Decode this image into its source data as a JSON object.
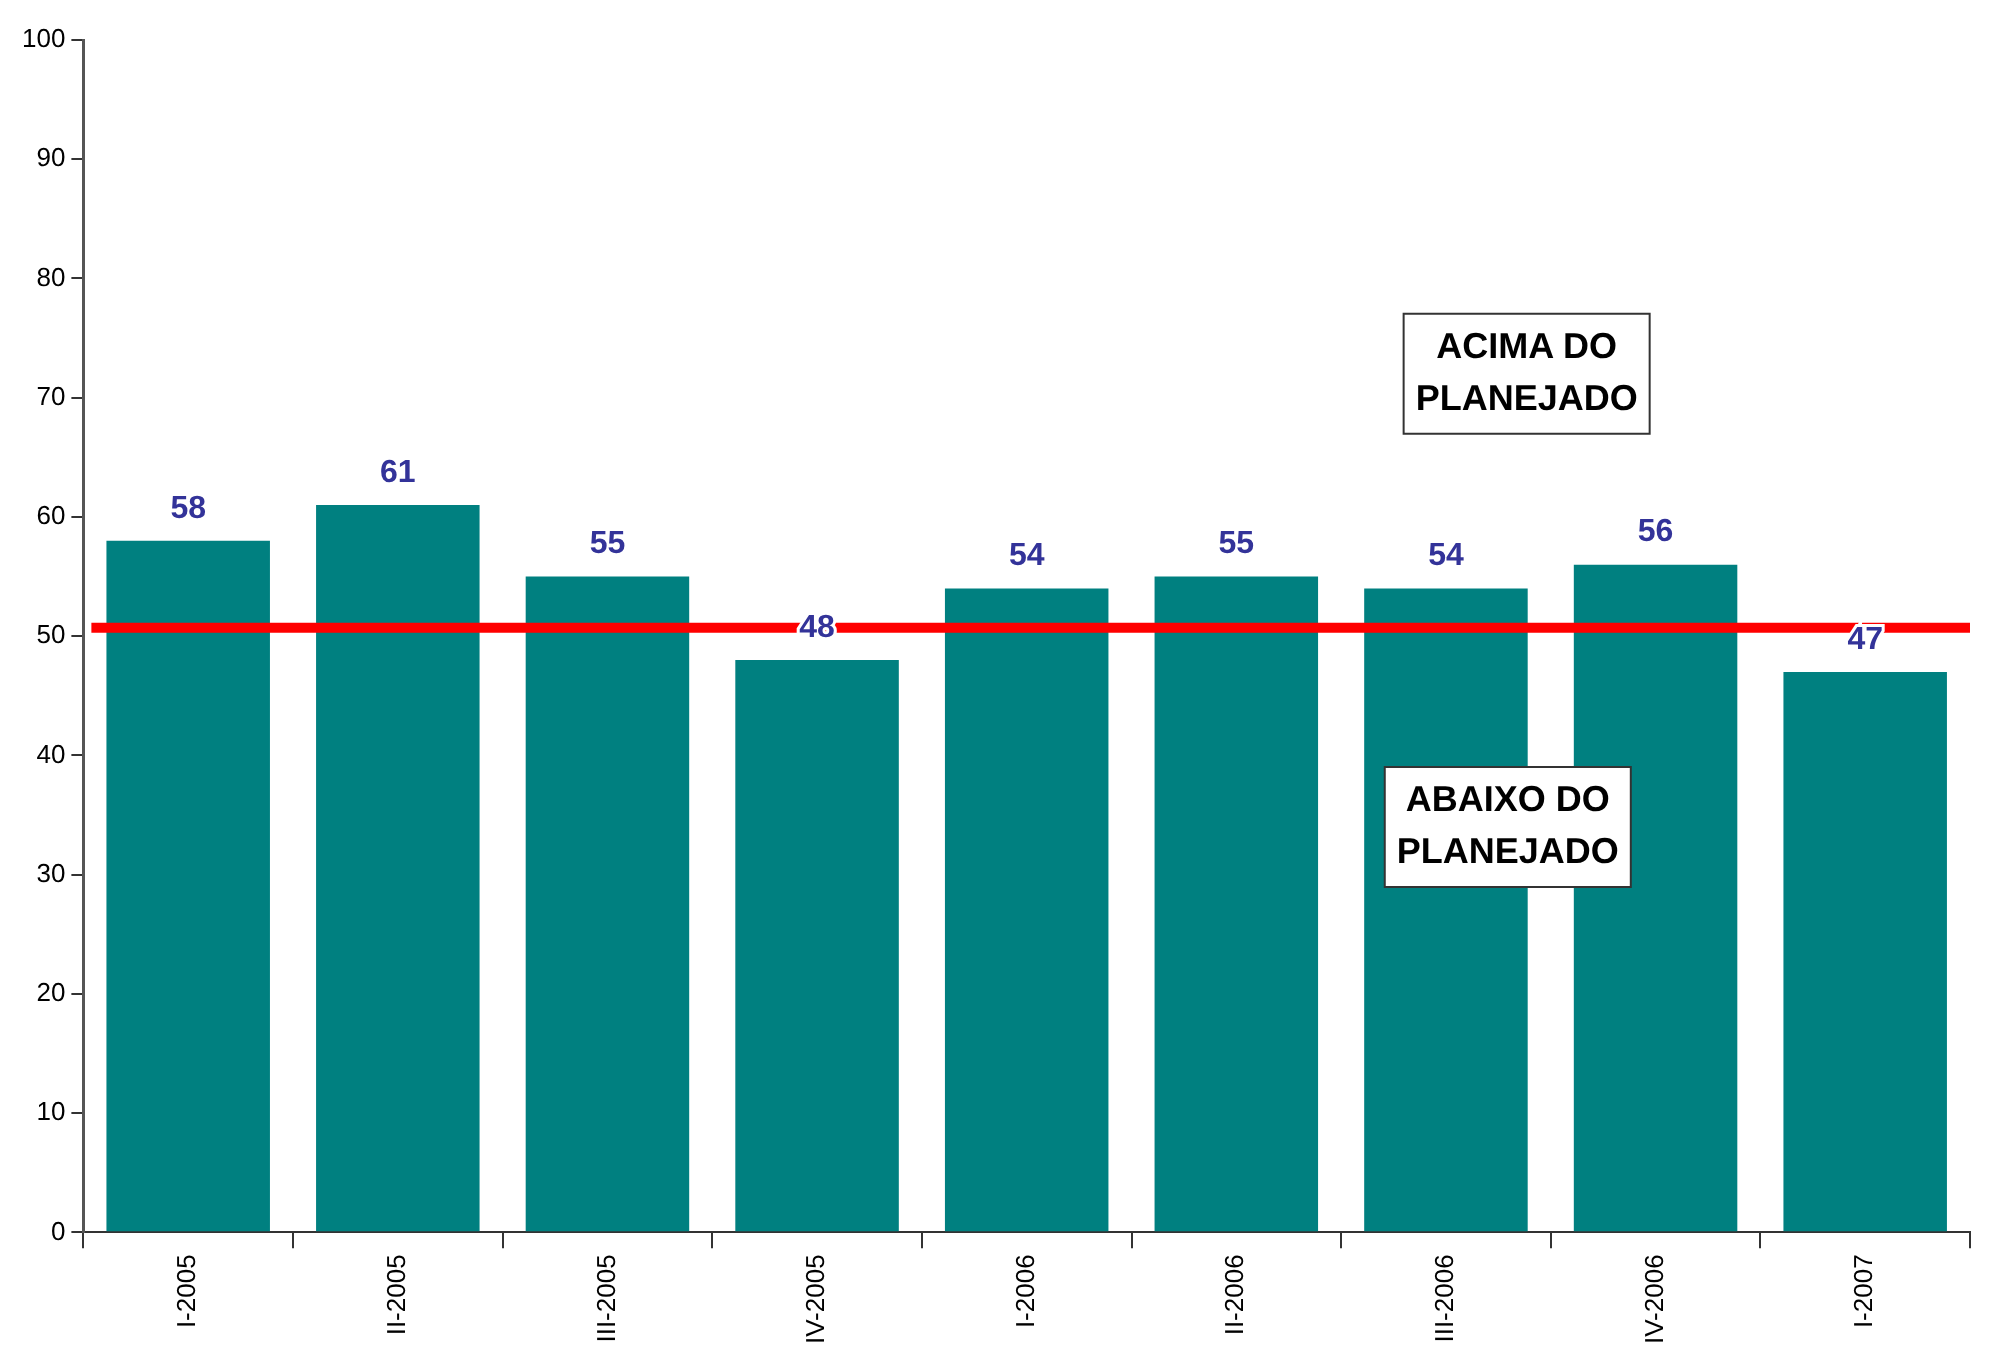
{
  "chart_data": {
    "type": "bar",
    "categories": [
      "I-2005",
      "II-2005",
      "III-2005",
      "IV-2005",
      "I-2006",
      "II-2006",
      "III-2006",
      "IV-2006",
      "I-2007"
    ],
    "values": [
      58,
      61,
      55,
      48,
      54,
      55,
      54,
      56,
      47
    ],
    "color": "#008080",
    "ylim": [
      0,
      100
    ],
    "yticks": [
      0,
      10,
      20,
      30,
      40,
      50,
      60,
      70,
      80,
      90,
      100
    ],
    "grid": false,
    "legend": false,
    "data_labels": true,
    "ref_lines": [
      {
        "axis": "y",
        "value": 50.7,
        "color": "#ff0000"
      }
    ],
    "annotations": [
      "ACIMA DO PLANEJADO",
      "ABAIXO DO PLANEJADO"
    ]
  }
}
